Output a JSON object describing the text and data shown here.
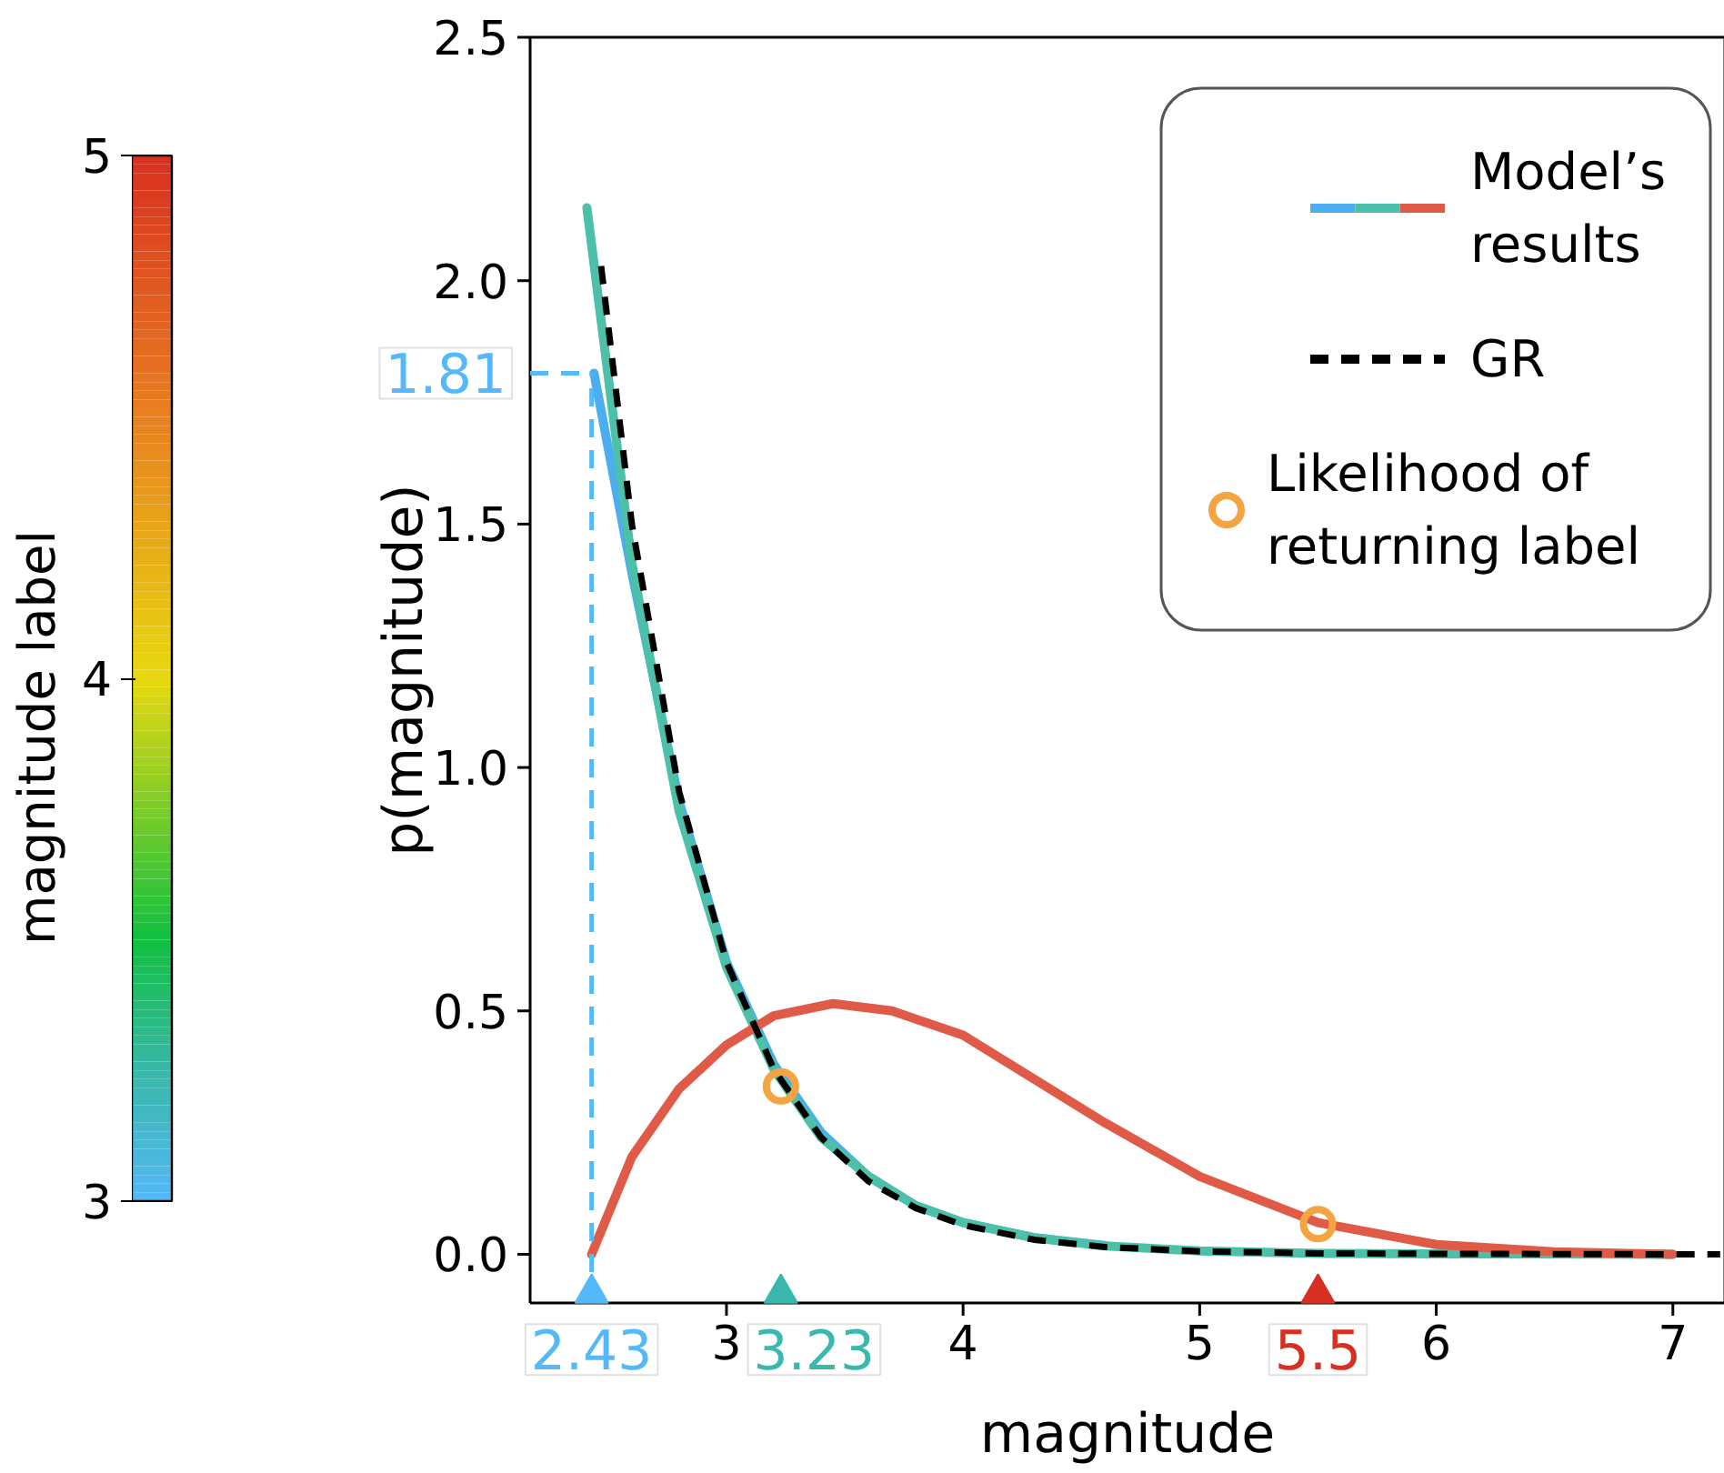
{
  "chart_data": {
    "type": "line",
    "xlabel": "magnitude",
    "ylabel": "p(magnitude)",
    "clabel": "magnitude label",
    "clim": [
      3,
      5
    ],
    "cticks": [
      3,
      4,
      5
    ],
    "xlim": [
      2.17,
      7.22
    ],
    "ylim": [
      -0.1,
      2.5
    ],
    "xticks": [
      3,
      4,
      5,
      6,
      7
    ],
    "yticks": [
      {
        "value": 0,
        "label": "0.0"
      },
      0.5,
      {
        "value": 1,
        "label": "1.0"
      },
      1.5,
      {
        "value": 2,
        "label": "2.0"
      },
      2.5
    ],
    "legend": "top right",
    "series": [
      {
        "color": "#4aaef0",
        "x": [
          2.44,
          2.6,
          2.8,
          3.0,
          3.2,
          3.4,
          3.6,
          3.8,
          4.0,
          4.3,
          4.6
        ],
        "values": [
          1.81,
          1.4,
          0.93,
          0.6,
          0.39,
          0.25,
          0.16,
          0.1,
          0.065,
          0.034,
          0.018
        ]
      },
      {
        "name": "Model’s results",
        "color": "#4cc0a8",
        "x": [
          2.41,
          2.6,
          2.8,
          3.0,
          3.2,
          3.4,
          3.6,
          3.8,
          4.0,
          4.3,
          4.6,
          5.0,
          5.5,
          6.0,
          7.0
        ],
        "values": [
          2.15,
          1.42,
          0.91,
          0.59,
          0.38,
          0.24,
          0.16,
          0.1,
          0.065,
          0.034,
          0.017,
          0.007,
          0.002,
          0.001,
          0.0
        ]
      },
      {
        "color": "#e05a48",
        "x": [
          2.43,
          2.6,
          2.8,
          3.0,
          3.2,
          3.45,
          3.7,
          4.0,
          4.3,
          4.6,
          5.0,
          5.5,
          6.0,
          6.5,
          7.0
        ],
        "values": [
          0.0,
          0.2,
          0.34,
          0.43,
          0.49,
          0.515,
          0.5,
          0.45,
          0.36,
          0.27,
          0.16,
          0.065,
          0.02,
          0.005,
          0.0
        ]
      },
      {
        "name": "GR",
        "color": "#000000",
        "line_style": "dashed",
        "x": [
          2.47,
          2.6,
          2.8,
          3.0,
          3.2,
          3.4,
          3.6,
          3.8,
          4.0,
          4.3,
          4.6,
          5.0,
          5.5,
          6.0,
          7.0,
          7.2
        ],
        "values": [
          2.03,
          1.5,
          0.95,
          0.6,
          0.38,
          0.24,
          0.15,
          0.095,
          0.06,
          0.03,
          0.015,
          0.006,
          0.002,
          0.001,
          0.0,
          0.0
        ]
      },
      {
        "name": "Likelihood of returning label",
        "type": "scatter",
        "marker": "circle",
        "color": "#f5a442",
        "x": [
          3.23,
          5.5
        ],
        "values": [
          0.345,
          0.062
        ]
      },
      {
        "type": "scatter",
        "marker": "triangle",
        "colors": [
          "#55b8f8",
          "#3ab8ae",
          "#d83020"
        ],
        "x": [
          2.43,
          3.23,
          5.5
        ],
        "values": [
          -0.08,
          -0.08,
          -0.08
        ]
      }
    ],
    "ref_lines": [
      {
        "axis": "x",
        "value": 2.43,
        "color": "#55b8f8",
        "line_style": "dashed"
      },
      {
        "axis": "y",
        "value": 1.81,
        "label": "1.81",
        "color": "#55b8f8",
        "line_style": "dashed"
      }
    ],
    "annotations": [
      {
        "text": "2.43",
        "x": 2.43,
        "y": -0.08
      },
      {
        "text": "3.23",
        "x": 3.23,
        "y": -0.08
      },
      {
        "text": "5.5",
        "x": 5.5,
        "y": -0.08
      }
    ]
  }
}
